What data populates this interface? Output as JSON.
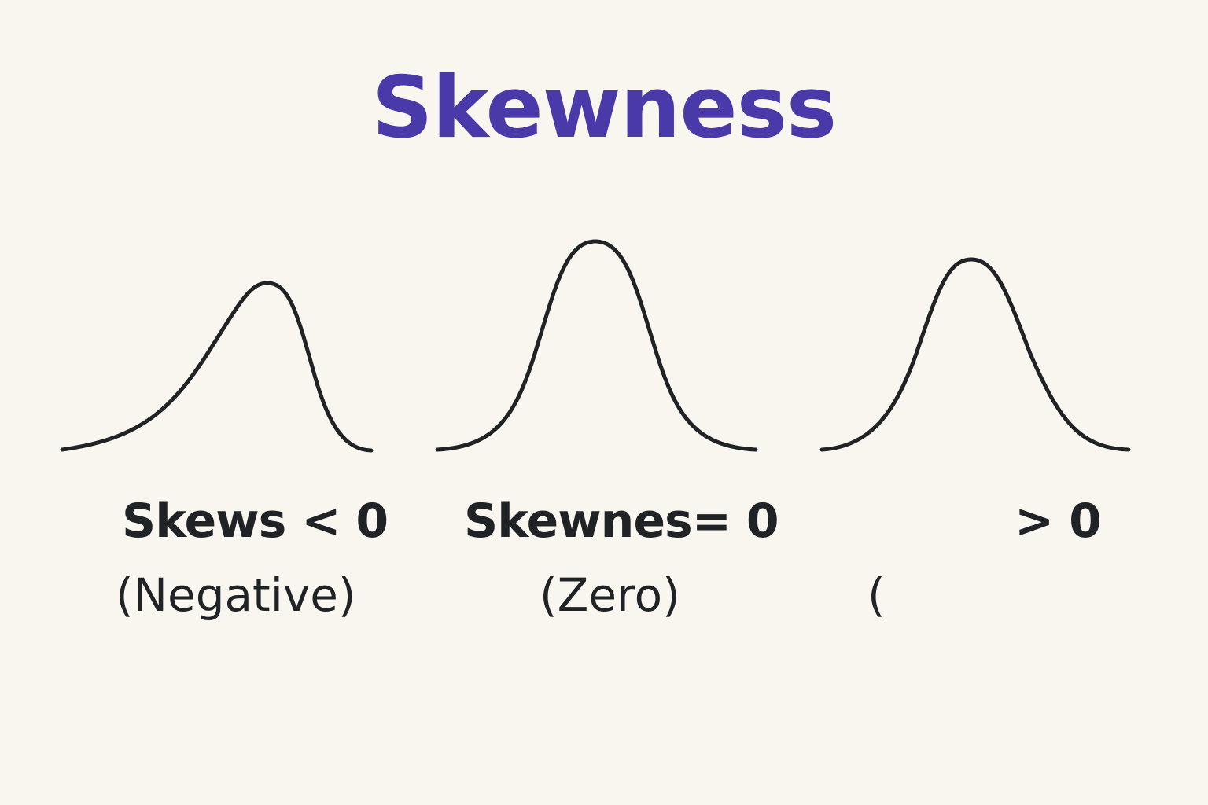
{
  "title": "Skewness",
  "colors": {
    "title": "#4a39a8",
    "curve": "#1f2326",
    "text": "#1f2326",
    "background": "#f9f6f0"
  },
  "panels": [
    {
      "id": "negative",
      "label": "Skews < 0",
      "sublabel": "(Negative)"
    },
    {
      "id": "zero",
      "label": "Skewnes= 0",
      "sublabel": "(Zero)"
    },
    {
      "id": "positive",
      "label": "> 0",
      "sublabel": "("
    }
  ]
}
